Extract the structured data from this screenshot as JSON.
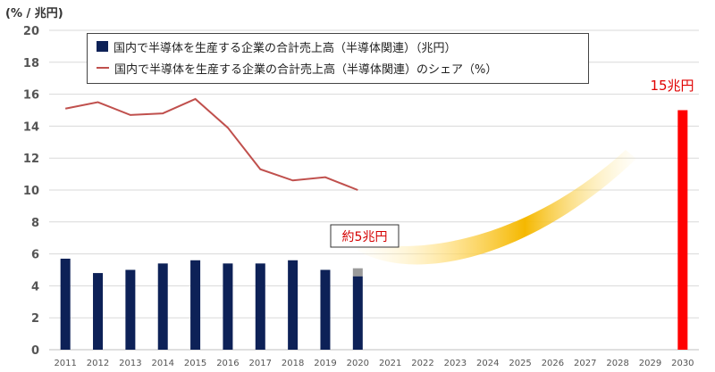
{
  "unit_label": "(% / 兆円)",
  "colors": {
    "bar": "#0d2157",
    "bar_estimate": "#9a9a9a",
    "line": "#c0504d",
    "target_bar": "#ff0000",
    "target_text": "#e00000",
    "annotation_text": "#d40000",
    "grid": "#d9d9d9",
    "axis_text": "#555555",
    "arrow": "#f5b800"
  },
  "legend": {
    "bar_label": "国内で半導体を生産する企業の合計売上高（半導体関連）（兆円）",
    "line_label": "国内で半導体を生産する企業の合計売上高（半導体関連）のシェア（%）"
  },
  "annotations": {
    "current": "約5兆円",
    "target": "15兆円"
  },
  "chart_data": {
    "type": "bar",
    "categories": [
      "2011",
      "2012",
      "2013",
      "2014",
      "2015",
      "2016",
      "2017",
      "2018",
      "2019",
      "2020",
      "2021",
      "2022",
      "2023",
      "2024",
      "2025",
      "2026",
      "2027",
      "2028",
      "2029",
      "2030"
    ],
    "ylim": [
      0,
      20
    ],
    "yticks": [
      0,
      2,
      4,
      6,
      8,
      10,
      12,
      14,
      16,
      18,
      20
    ],
    "grid": true,
    "legend_position": "top-left",
    "series": [
      {
        "name": "国内で半導体を生産する企業の合計売上高（半導体関連）（兆円）",
        "kind": "bar",
        "values": [
          5.7,
          4.8,
          5.0,
          5.4,
          5.6,
          5.4,
          5.4,
          5.6,
          5.0,
          5.1,
          null,
          null,
          null,
          null,
          null,
          null,
          null,
          null,
          null,
          15.0
        ],
        "estimate_tail": {
          "category": "2020",
          "from": 4.6,
          "to": 5.1
        }
      },
      {
        "name": "国内で半導体を生産する企業の合計売上高（半導体関連）のシェア（%）",
        "kind": "line",
        "values": [
          15.1,
          15.5,
          14.7,
          14.8,
          15.7,
          13.9,
          11.3,
          10.6,
          10.8,
          10.0,
          null,
          null,
          null,
          null,
          null,
          null,
          null,
          null,
          null,
          null
        ]
      }
    ]
  }
}
